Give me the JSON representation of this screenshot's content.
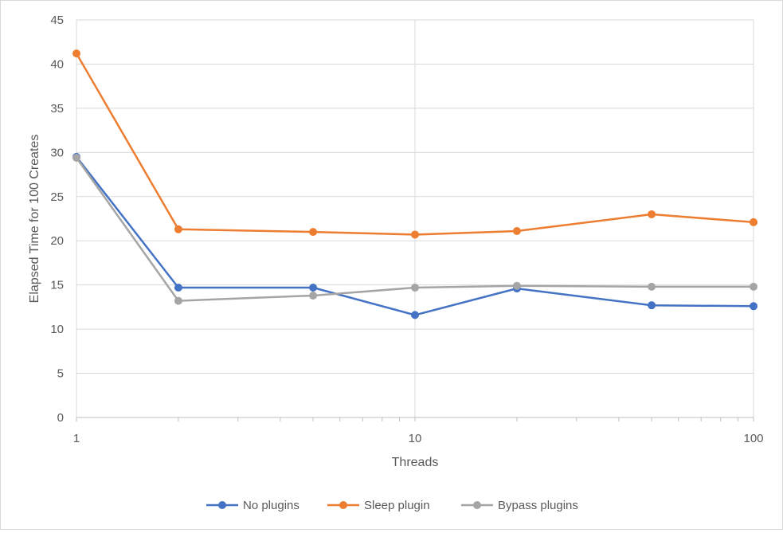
{
  "chart_data": {
    "type": "line",
    "title": "",
    "xlabel": "Threads",
    "ylabel": "Elapsed Time for 100 Creates",
    "x_scale": "log",
    "x": [
      1,
      2,
      5,
      10,
      20,
      50,
      100
    ],
    "xlim": [
      1,
      100
    ],
    "ylim": [
      0,
      45
    ],
    "x_ticks": [
      1,
      10,
      100
    ],
    "y_ticks": [
      0,
      5,
      10,
      15,
      20,
      25,
      30,
      35,
      40,
      45
    ],
    "grid": true,
    "legend_position": "bottom",
    "series": [
      {
        "name": "No plugins",
        "color": "#4472c4",
        "values": [
          29.5,
          14.7,
          14.7,
          11.6,
          14.6,
          12.7,
          12.6
        ]
      },
      {
        "name": "Sleep plugin",
        "color": "#ed7d31",
        "values": [
          41.2,
          21.3,
          21.0,
          20.7,
          21.1,
          23.0,
          22.1
        ]
      },
      {
        "name": "Bypass plugins",
        "color": "#a5a5a5",
        "values": [
          29.4,
          13.2,
          13.8,
          14.7,
          14.9,
          14.8,
          14.8
        ]
      }
    ]
  }
}
